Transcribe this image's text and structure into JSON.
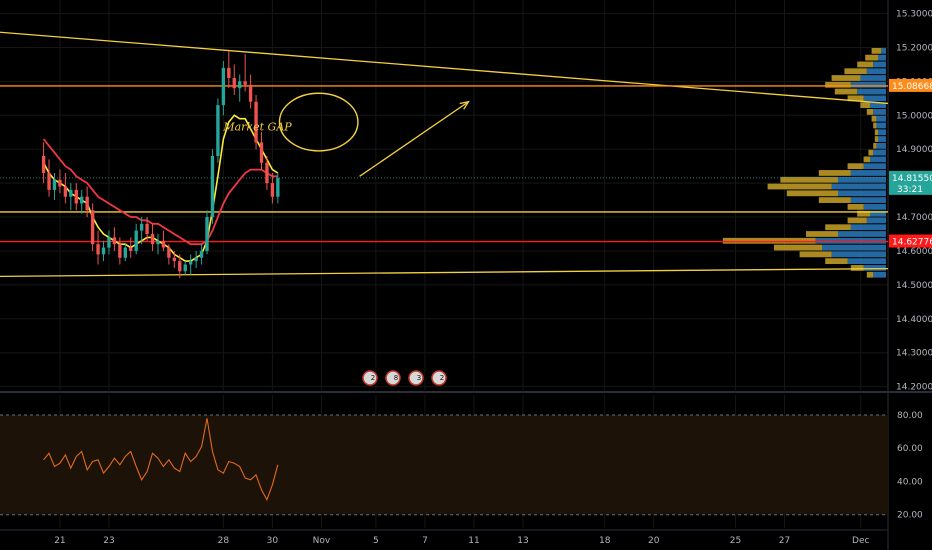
{
  "colors": {
    "background": "#000000",
    "grid": "#161616",
    "axis_text": "#b2b5be",
    "up": "#26a69a",
    "down": "#ef5350",
    "ma_fast": "#ffeb3b",
    "ma_slow": "#f23645",
    "trend": "#f4d03f",
    "resistance": "#ff8c1a",
    "support": "#ff1a1a",
    "rsi_line": "#e06a1f",
    "price_tag": "#26a69a",
    "vp_up": "#2a7bbd",
    "vp_down": "#c9a227"
  },
  "chart_data": [
    {
      "type": "candlestick",
      "panel": "price",
      "y_axis_labels": [
        "15.30000",
        "15.20000",
        "15.10000",
        "15.00000",
        "14.90000",
        "14.80000",
        "14.70000",
        "14.60000",
        "14.50000",
        "14.40000",
        "14.30000",
        "14.20000"
      ],
      "ylim": [
        14.19,
        15.34
      ],
      "x_ticks": [
        {
          "label": "21",
          "x": 3
        },
        {
          "label": "23",
          "x": 12
        },
        {
          "label": "28",
          "x": 33
        },
        {
          "label": "30",
          "x": 42
        },
        {
          "label": "Nov",
          "x": 51
        },
        {
          "label": "5",
          "x": 61
        },
        {
          "label": "7",
          "x": 70
        },
        {
          "label": "11",
          "x": 79
        },
        {
          "label": "13",
          "x": 88
        },
        {
          "label": "18",
          "x": 103
        },
        {
          "label": "20",
          "x": 112
        },
        {
          "label": "25",
          "x": 127
        },
        {
          "label": "27",
          "x": 136
        },
        {
          "label": "Dec",
          "x": 150
        }
      ],
      "xlim": [
        -8,
        155
      ],
      "candles": [
        [
          14.88,
          14.92,
          14.8,
          14.83
        ],
        [
          14.83,
          14.87,
          14.76,
          14.78
        ],
        [
          14.78,
          14.83,
          14.75,
          14.81
        ],
        [
          14.81,
          14.84,
          14.77,
          14.79
        ],
        [
          14.79,
          14.83,
          14.74,
          14.76
        ],
        [
          14.76,
          14.8,
          14.72,
          14.78
        ],
        [
          14.78,
          14.8,
          14.72,
          14.74
        ],
        [
          14.74,
          14.78,
          14.71,
          14.76
        ],
        [
          14.76,
          14.79,
          14.7,
          14.72
        ],
        [
          14.72,
          14.74,
          14.6,
          14.62
        ],
        [
          14.62,
          14.66,
          14.56,
          14.59
        ],
        [
          14.59,
          14.63,
          14.57,
          14.61
        ],
        [
          14.61,
          14.66,
          14.59,
          14.64
        ],
        [
          14.64,
          14.67,
          14.6,
          14.62
        ],
        [
          14.62,
          14.64,
          14.56,
          14.58
        ],
        [
          14.58,
          14.62,
          14.57,
          14.61
        ],
        [
          14.61,
          14.64,
          14.58,
          14.6
        ],
        [
          14.6,
          14.68,
          14.59,
          14.66
        ],
        [
          14.66,
          14.7,
          14.62,
          14.68
        ],
        [
          14.68,
          14.7,
          14.63,
          14.65
        ],
        [
          14.65,
          14.68,
          14.6,
          14.62
        ],
        [
          14.62,
          14.65,
          14.59,
          14.63
        ],
        [
          14.63,
          14.66,
          14.6,
          14.61
        ],
        [
          14.61,
          14.62,
          14.56,
          14.58
        ],
        [
          14.58,
          14.6,
          14.55,
          14.57
        ],
        [
          14.57,
          14.59,
          14.52,
          14.54
        ],
        [
          14.54,
          14.57,
          14.53,
          14.56
        ],
        [
          14.56,
          14.59,
          14.53,
          14.57
        ],
        [
          14.57,
          14.6,
          14.55,
          14.58
        ],
        [
          14.58,
          14.62,
          14.56,
          14.6
        ],
        [
          14.6,
          14.72,
          14.59,
          14.7
        ],
        [
          14.7,
          14.9,
          14.68,
          14.88
        ],
        [
          14.88,
          15.05,
          14.86,
          15.03
        ],
        [
          15.03,
          15.16,
          15.0,
          15.14
        ],
        [
          15.14,
          15.19,
          15.08,
          15.11
        ],
        [
          15.11,
          15.15,
          15.06,
          15.08
        ],
        [
          15.08,
          15.12,
          15.04,
          15.1
        ],
        [
          15.1,
          15.18,
          15.07,
          15.09
        ],
        [
          15.09,
          15.12,
          15.02,
          15.04
        ],
        [
          15.04,
          15.06,
          14.9,
          14.92
        ],
        [
          14.92,
          14.95,
          14.84,
          14.86
        ],
        [
          14.86,
          14.88,
          14.78,
          14.8
        ],
        [
          14.8,
          14.83,
          14.74,
          14.76
        ],
        [
          14.76,
          14.83,
          14.74,
          14.815
        ]
      ],
      "ma_fast": [
        14.86,
        14.83,
        14.81,
        14.8,
        14.79,
        14.77,
        14.76,
        14.75,
        14.74,
        14.7,
        14.67,
        14.65,
        14.64,
        14.63,
        14.62,
        14.62,
        14.61,
        14.62,
        14.63,
        14.64,
        14.64,
        14.63,
        14.62,
        14.61,
        14.59,
        14.58,
        14.57,
        14.57,
        14.58,
        14.59,
        14.63,
        14.72,
        14.82,
        14.93,
        14.98,
        15.0,
        14.99,
        14.99,
        14.96,
        14.93,
        14.9,
        14.87,
        14.84,
        14.83
      ],
      "ma_slow": [
        14.93,
        14.91,
        14.89,
        14.87,
        14.85,
        14.84,
        14.82,
        14.81,
        14.8,
        14.78,
        14.76,
        14.75,
        14.74,
        14.73,
        14.72,
        14.71,
        14.7,
        14.7,
        14.69,
        14.69,
        14.68,
        14.68,
        14.67,
        14.66,
        14.65,
        14.64,
        14.63,
        14.62,
        14.62,
        14.62,
        14.63,
        14.66,
        14.7,
        14.74,
        14.77,
        14.79,
        14.81,
        14.83,
        14.84,
        14.84,
        14.84,
        14.83,
        14.82,
        14.82
      ],
      "levels": [
        {
          "name": "resistance",
          "value": 15.08668,
          "label": "15.08668",
          "color": "#ff8c1a"
        },
        {
          "name": "current",
          "value": 14.8155,
          "label": "14.81550",
          "sub_label": "33:21",
          "color": "#26a69a"
        },
        {
          "name": "support-top",
          "value": 14.715,
          "color": "#f4d03f"
        },
        {
          "name": "support",
          "value": 14.62776,
          "label": "14.62776",
          "color": "#ff1a1a"
        }
      ],
      "trendlines": [
        {
          "name": "upper-trendline",
          "x0": -8,
          "y0": 15.245,
          "x1": 155,
          "y1": 15.035
        },
        {
          "name": "lower-trendline",
          "x0": -8,
          "y0": 14.525,
          "x1": 155,
          "y1": 14.548
        }
      ],
      "annotation": {
        "text": "Market GAP",
        "x": 33,
        "y": 14.955
      },
      "arrow": {
        "x0": 58,
        "y0": 14.82,
        "x1": 78,
        "y1": 15.04
      },
      "ellipse": {
        "cx": 50.5,
        "cy": 14.98,
        "rx": 7.2,
        "ry": 0.085
      },
      "volume_profile": [
        [
          15.19,
          3,
          6
        ],
        [
          15.17,
          5,
          8
        ],
        [
          15.15,
          8,
          10
        ],
        [
          15.13,
          12,
          14
        ],
        [
          15.11,
          16,
          18
        ],
        [
          15.09,
          22,
          16
        ],
        [
          15.07,
          18,
          14
        ],
        [
          15.05,
          14,
          10
        ],
        [
          15.03,
          10,
          6
        ],
        [
          15.01,
          8,
          4
        ],
        [
          14.99,
          6,
          3
        ],
        [
          14.97,
          6,
          2
        ],
        [
          14.95,
          5,
          2
        ],
        [
          14.93,
          5,
          2
        ],
        [
          14.91,
          6,
          2
        ],
        [
          14.89,
          8,
          3
        ],
        [
          14.87,
          10,
          4
        ],
        [
          14.85,
          14,
          10
        ],
        [
          14.83,
          22,
          20
        ],
        [
          14.81,
          30,
          36
        ],
        [
          14.79,
          34,
          40
        ],
        [
          14.77,
          30,
          32
        ],
        [
          14.75,
          22,
          20
        ],
        [
          14.73,
          14,
          10
        ],
        [
          14.71,
          10,
          8
        ],
        [
          14.69,
          12,
          12
        ],
        [
          14.67,
          22,
          16
        ],
        [
          14.65,
          30,
          20
        ],
        [
          14.63,
          44,
          58
        ],
        [
          14.61,
          40,
          30
        ],
        [
          14.59,
          34,
          20
        ],
        [
          14.57,
          24,
          14
        ],
        [
          14.55,
          14,
          8
        ],
        [
          14.53,
          8,
          4
        ]
      ],
      "events": [
        "2",
        "8",
        "3",
        "2"
      ]
    },
    {
      "type": "line",
      "panel": "rsi",
      "y_axis_labels": [
        "80.00",
        "60.00",
        "40.00",
        "20.00"
      ],
      "ylim": [
        12,
        92
      ],
      "bands": [
        80,
        20
      ],
      "values": [
        53,
        57,
        49,
        51,
        56,
        48,
        55,
        58,
        47,
        52,
        53,
        45,
        49,
        54,
        50,
        55,
        58,
        49,
        41,
        46,
        57,
        54,
        49,
        53,
        48,
        46,
        57,
        52,
        55,
        61,
        78,
        58,
        47,
        45,
        52,
        51,
        49,
        42,
        41,
        44,
        35,
        29,
        38,
        50
      ]
    }
  ]
}
